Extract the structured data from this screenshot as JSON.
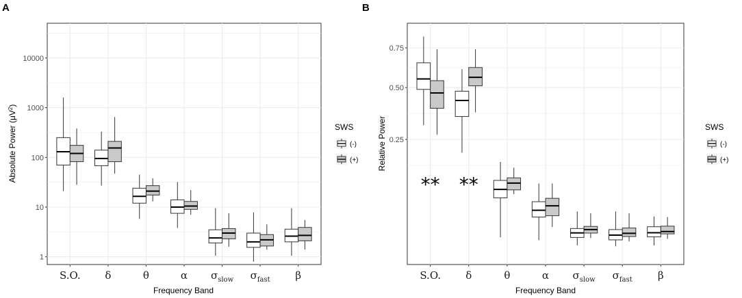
{
  "chart_data": [
    {
      "panel": "A",
      "type": "box",
      "scale": "log",
      "xlabel": "Frequency Band",
      "ylabel_main": "Absolute Power (",
      "ylabel_unit": "μV",
      "ylabel_sup": "2",
      "ylabel_close": ")",
      "ylim": [
        0.7,
        50000
      ],
      "yticks": [
        1,
        10,
        100,
        1000,
        10000
      ],
      "ytick_labels": [
        "1",
        "10",
        "100",
        "1000",
        "10000"
      ],
      "categories": [
        {
          "main": "S.O.",
          "sub": ""
        },
        {
          "main": "δ",
          "sub": ""
        },
        {
          "main": "θ",
          "sub": ""
        },
        {
          "main": "α",
          "sub": ""
        },
        {
          "main": "σ",
          "sub": "slow"
        },
        {
          "main": "σ",
          "sub": "fast"
        },
        {
          "main": "β",
          "sub": ""
        }
      ],
      "series": [
        {
          "name": "(-)",
          "boxes": [
            {
              "min": 21,
              "q1": 70,
              "median": 130,
              "q3": 250,
              "max": 1600
            },
            {
              "min": 27,
              "q1": 68,
              "median": 95,
              "q3": 140,
              "max": 330
            },
            {
              "min": 5.8,
              "q1": 12,
              "median": 16.5,
              "q3": 24,
              "max": 45
            },
            {
              "min": 3.8,
              "q1": 7.5,
              "median": 10,
              "q3": 14,
              "max": 32
            },
            {
              "min": 1.05,
              "q1": 1.9,
              "median": 2.4,
              "q3": 3.5,
              "max": 9.5
            },
            {
              "min": 0.8,
              "q1": 1.55,
              "median": 2,
              "q3": 3,
              "max": 7.8
            },
            {
              "min": 1.05,
              "q1": 2,
              "median": 2.6,
              "q3": 3.6,
              "max": 9.5
            }
          ]
        },
        {
          "name": "(+)",
          "boxes": [
            {
              "min": 28,
              "q1": 82,
              "median": 120,
              "q3": 175,
              "max": 380
            },
            {
              "min": 47,
              "q1": 82,
              "median": 155,
              "q3": 210,
              "max": 650
            },
            {
              "min": 13,
              "q1": 17.5,
              "median": 21,
              "q3": 27,
              "max": 38
            },
            {
              "min": 7,
              "q1": 9,
              "median": 10.5,
              "q3": 13,
              "max": 22
            },
            {
              "min": 1.6,
              "q1": 2.3,
              "median": 3,
              "q3": 3.7,
              "max": 7.5
            },
            {
              "min": 1.4,
              "q1": 1.65,
              "median": 2.2,
              "q3": 2.8,
              "max": 4.5
            },
            {
              "min": 1.4,
              "q1": 2.1,
              "median": 2.7,
              "q3": 3.9,
              "max": 5.5
            }
          ]
        }
      ],
      "significance": []
    },
    {
      "panel": "B",
      "type": "box",
      "scale": "sqrt",
      "xlabel": "Frequency Band",
      "ylabel_main": "Relative Power",
      "ylabel_unit": "",
      "ylabel_sup": "",
      "ylabel_close": "",
      "ylim": [
        0,
        0.93
      ],
      "yticks": [
        0.25,
        0.5,
        0.75
      ],
      "ytick_labels": [
        "0.25",
        "0.50",
        "0.75"
      ],
      "categories": [
        {
          "main": "S.O.",
          "sub": ""
        },
        {
          "main": "δ",
          "sub": ""
        },
        {
          "main": "θ",
          "sub": ""
        },
        {
          "main": "α",
          "sub": ""
        },
        {
          "main": "σ",
          "sub": "slow"
        },
        {
          "main": "σ",
          "sub": "fast"
        },
        {
          "main": "β",
          "sub": ""
        }
      ],
      "series": [
        {
          "name": "(-)",
          "boxes": [
            {
              "min": 0.31,
              "q1": 0.49,
              "median": 0.55,
              "q3": 0.65,
              "max": 0.83
            },
            {
              "min": 0.2,
              "q1": 0.35,
              "median": 0.43,
              "q3": 0.48,
              "max": 0.61
            },
            {
              "min": 0.0118,
              "q1": 0.071,
              "median": 0.09,
              "q3": 0.113,
              "max": 0.168
            },
            {
              "min": 0.0095,
              "q1": 0.036,
              "median": 0.047,
              "q3": 0.063,
              "max": 0.105
            },
            {
              "min": 0.0058,
              "q1": 0.0117,
              "median": 0.016,
              "q3": 0.0207,
              "max": 0.045
            },
            {
              "min": 0.0053,
              "q1": 0.0097,
              "median": 0.0138,
              "q3": 0.0195,
              "max": 0.045
            },
            {
              "min": 0.0058,
              "q1": 0.0122,
              "median": 0.0161,
              "q3": 0.0228,
              "max": 0.037
            }
          ]
        },
        {
          "name": "(+)",
          "boxes": [
            {
              "min": 0.27,
              "q1": 0.39,
              "median": 0.47,
              "q3": 0.54,
              "max": 0.74
            },
            {
              "min": 0.37,
              "q1": 0.51,
              "median": 0.56,
              "q3": 0.62,
              "max": 0.74
            },
            {
              "min": 0.079,
              "q1": 0.089,
              "median": 0.106,
              "q3": 0.12,
              "max": 0.15
            },
            {
              "min": 0.0225,
              "q1": 0.038,
              "median": 0.055,
              "q3": 0.07,
              "max": 0.105
            },
            {
              "min": 0.0112,
              "q1": 0.0158,
              "median": 0.0195,
              "q3": 0.0232,
              "max": 0.042
            },
            {
              "min": 0.0085,
              "q1": 0.0125,
              "median": 0.0155,
              "q3": 0.0213,
              "max": 0.042
            },
            {
              "min": 0.0105,
              "q1": 0.015,
              "median": 0.0174,
              "q3": 0.0235,
              "max": 0.036
            }
          ]
        }
      ],
      "significance": [
        {
          "category": 0,
          "label": "**",
          "y": 0.11
        },
        {
          "category": 1,
          "label": "**",
          "y": 0.11
        }
      ]
    }
  ],
  "legend": {
    "title": "SWS",
    "items": [
      {
        "label": "(-)",
        "fill": "#ffffff"
      },
      {
        "label": "(+)",
        "fill": "#c9c9c9"
      }
    ]
  },
  "colors": {
    "background": "#ffffff",
    "grid": "#ebebeb",
    "box_minus": "#ffffff",
    "box_plus": "#c9c9c9",
    "stroke": "#333333"
  }
}
